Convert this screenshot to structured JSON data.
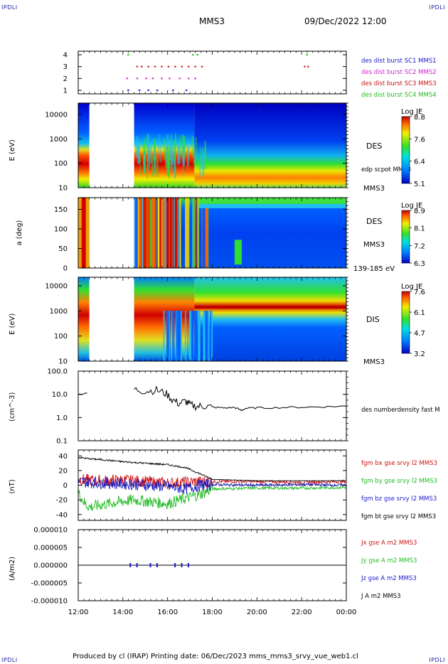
{
  "corners": {
    "tl": "IPDLI",
    "tr": "IPDLI",
    "bl": "IPDLI",
    "br": "IPDLI"
  },
  "header": {
    "spacecraft": "MMS3",
    "datetime": "09/Dec/2022 12:00"
  },
  "footer": {
    "text": "Produced by cl (IRAP)   Printing date: 06/Dec/2023   mms_mms3_srvy_vue_web1.cl"
  },
  "colors": {
    "sc1": "#1a1acc",
    "sc2": "#cc22cc",
    "sc3": "#cc1111",
    "sc4": "#22bb22",
    "black": "#000000"
  },
  "chart_data": [
    {
      "type": "scatter",
      "panel": "burst",
      "yticks": [
        "1",
        "2",
        "3",
        "4"
      ],
      "legend": [
        {
          "label": "des dist burst SC1 MMS1",
          "color": "#1a1acc"
        },
        {
          "label": "des dist burst SC2 MMS2",
          "color": "#cc22cc"
        },
        {
          "label": "des dist burst SC3 MMS3",
          "color": "#cc1111"
        },
        {
          "label": "des dist burst SC4 MMS4",
          "color": "#22bb22"
        }
      ],
      "series": [
        {
          "sc": 4,
          "x": [
            14.2,
            17.1,
            17.3,
            22.2
          ]
        },
        {
          "sc": 3,
          "x": [
            14.6,
            14.8,
            15.1,
            15.4,
            15.7,
            16.0,
            16.3,
            16.6,
            16.9,
            17.2,
            17.5,
            22.1,
            22.25
          ]
        },
        {
          "sc": 2,
          "x": [
            14.15,
            14.6,
            15.0,
            15.3,
            15.7,
            16.05,
            16.5,
            16.9,
            17.2
          ]
        },
        {
          "sc": 1,
          "x": [
            14.2,
            14.7,
            15.1,
            15.5,
            16.2,
            16.8
          ]
        }
      ]
    },
    {
      "type": "heatmap",
      "panel": "des_energy",
      "ylabel": "E (eV)",
      "yticks": [
        "10",
        "100",
        "1000",
        "10000"
      ],
      "ylim": [
        10,
        30000
      ],
      "log_y": true,
      "label": "DES",
      "sublabel": "MMS3",
      "overlay_label": "edp scpot MMS3",
      "colorbar": {
        "title": "Log JE",
        "ticks": [
          "8.8",
          "7.6",
          "6.4",
          "5.1"
        ]
      },
      "data_gap": [
        12.5,
        14.5
      ]
    },
    {
      "type": "heatmap",
      "panel": "des_pitch",
      "ylabel": "a (deg)",
      "yticks": [
        "0",
        "50",
        "100",
        "150"
      ],
      "ylim": [
        0,
        180
      ],
      "label": "DES",
      "sublabel": "MMS3",
      "note": "139-185 eV",
      "colorbar": {
        "title": "Log JE",
        "ticks": [
          "8.9",
          "8.1",
          "7.2",
          "6.3"
        ]
      },
      "data_gap": [
        12.5,
        14.5
      ]
    },
    {
      "type": "heatmap",
      "panel": "dis_energy",
      "ylabel": "E (eV)",
      "yticks": [
        "10",
        "100",
        "1000",
        "10000"
      ],
      "ylim": [
        10,
        30000
      ],
      "log_y": true,
      "label": "DIS",
      "sublabel": "MMS3",
      "colorbar": {
        "title": "Log JE",
        "ticks": [
          "7.6",
          "6.1",
          "4.7",
          "3.2"
        ]
      },
      "data_gap": [
        12.5,
        14.5
      ]
    },
    {
      "type": "line",
      "panel": "density",
      "ylabel": "(cm^-3)",
      "yticks": [
        "0.1",
        "1.0",
        "10.0",
        "100.0"
      ],
      "ylim": [
        0.1,
        100
      ],
      "log_y": true,
      "series": [
        {
          "name": "des numberdensity fast M",
          "color": "#000000",
          "x": [
            12.0,
            12.4,
            14.5,
            15.0,
            15.5,
            15.9,
            16.2,
            16.5,
            16.8,
            17.0,
            17.3,
            17.6,
            18.0,
            18.5,
            19.0,
            19.3,
            19.5,
            20.0,
            21.0,
            22.0,
            23.0,
            24.0
          ],
          "values": [
            10,
            11,
            16,
            14,
            15,
            11,
            6,
            4,
            5,
            3.5,
            3.0,
            3.2,
            2.8,
            2.6,
            2.7,
            2.0,
            2.5,
            2.6,
            2.7,
            2.8,
            2.9,
            3.1
          ]
        }
      ]
    },
    {
      "type": "line",
      "panel": "magnetic_field",
      "ylabel": "(nT)",
      "yticks": [
        "-40",
        "-20",
        "0",
        "20",
        "40"
      ],
      "ylim": [
        -48,
        48
      ],
      "series": [
        {
          "name": "fgm bx gse srvy l2 MMS3",
          "color": "#cc1111",
          "x": [
            12.0,
            13.0,
            14.0,
            15.0,
            16.0,
            16.8,
            17.5,
            18.0,
            20.0,
            22.0,
            24.0
          ],
          "values": [
            8,
            6,
            7,
            5,
            3,
            4,
            5,
            5,
            5,
            4,
            5
          ]
        },
        {
          "name": "fgm by gse srvy l2 MMS3",
          "color": "#22bb22",
          "x": [
            12.0,
            12.3,
            12.5,
            13.0,
            14.0,
            14.5,
            15.0,
            16.0,
            16.8,
            17.5,
            18.0,
            20.0,
            22.0,
            24.0
          ],
          "values": [
            -10,
            -25,
            -30,
            -27,
            -22,
            -20,
            -22,
            -25,
            -18,
            -12,
            -5,
            -4,
            -4,
            -3
          ]
        },
        {
          "name": "fgm bz gse srvy l2 MMS3",
          "color": "#1a1acc",
          "x": [
            12.0,
            13.0,
            14.0,
            15.0,
            16.0,
            16.8,
            17.5,
            18.0,
            20.0,
            22.0,
            24.0
          ],
          "values": [
            5,
            3,
            2,
            0,
            -2,
            -5,
            0,
            1,
            0,
            1,
            0
          ]
        },
        {
          "name": "fgm bt gse srvy l2 MMS3",
          "color": "#000000",
          "x": [
            12.0,
            12.5,
            13.0,
            14.0,
            15.0,
            16.0,
            16.8,
            17.5,
            18.0,
            20.0,
            22.0,
            24.0
          ],
          "values": [
            38,
            36,
            35,
            32,
            30,
            28,
            24,
            15,
            8,
            6,
            6,
            6
          ]
        }
      ]
    },
    {
      "type": "line",
      "panel": "current_density",
      "ylabel": "(A/m2)",
      "yticks": [
        "-0.000010",
        "-0.000005",
        "0.000000",
        "0.000005",
        "0.000010"
      ],
      "ylim": [
        -1e-05,
        1e-05
      ],
      "series": [
        {
          "name": "Jx gse A m2 MMS3",
          "color": "#cc1111",
          "x": [
            12.0,
            24.0
          ],
          "values": [
            0,
            0
          ]
        },
        {
          "name": "Jy gse A m2 MMS3",
          "color": "#22bb22",
          "x": [
            12.0,
            24.0
          ],
          "values": [
            0,
            0
          ]
        },
        {
          "name": "Jz gse A m2 MMS3",
          "color": "#1a1acc",
          "x": [
            12.0,
            24.0
          ],
          "values": [
            0,
            0
          ]
        },
        {
          "name": "J A m2 MMS3",
          "color": "#000000",
          "x": [
            12.0,
            24.0
          ],
          "values": [
            0,
            0
          ]
        }
      ]
    }
  ],
  "xaxis": {
    "ticks": [
      "12:00",
      "14:00",
      "16:00",
      "18:00",
      "20:00",
      "22:00",
      "00:00"
    ],
    "xlim": [
      12,
      24
    ]
  }
}
